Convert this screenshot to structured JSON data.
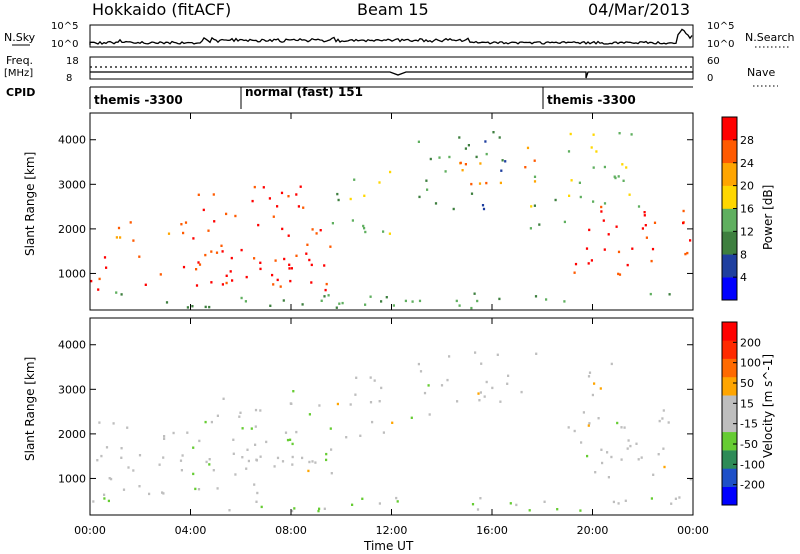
{
  "header": {
    "station": "Hokkaido (fitACF)",
    "beam": "Beam 15",
    "date": "04/Mar/2013"
  },
  "top_strip": {
    "nsky_label": "N.Sky",
    "nsky_ticks": [
      "10^5",
      "10^0"
    ],
    "nsearch_label": "N.Search",
    "nsearch_ticks": [
      "10^5",
      "10^0"
    ],
    "freq_label": "Freq.",
    "freq_unit": "[MHz]",
    "freq_ticks": [
      "18",
      "8"
    ],
    "nave_label": "Nave",
    "nave_ticks": [
      "60",
      "0"
    ],
    "cpid_label": "CPID",
    "cpid_segments": [
      {
        "label": "themis -3300",
        "start_hour": 0
      },
      {
        "label": "normal (fast) 151",
        "start_hour": 6
      },
      {
        "label": "themis -3300",
        "start_hour": 18.1
      }
    ]
  },
  "colors": {
    "power_scale": [
      "#0000ff",
      "#1f3f9f",
      "#3e7f3f",
      "#5faf5f",
      "#ffd700",
      "#ffa500",
      "#ff5a00",
      "#ff0000"
    ],
    "velocity_scale": [
      "#0000ff",
      "#1e50c8",
      "#2e8b57",
      "#66cc33",
      "#bebebe",
      "#bebebe",
      "#ffa500",
      "#ff6a00",
      "#ff2a00",
      "#ff0000"
    ]
  },
  "chart_data": [
    {
      "type": "heatmap",
      "title": "",
      "xlabel": "Time UT",
      "ylabel": "Slant Range [km]",
      "xlim": [
        0,
        24
      ],
      "ylim": [
        180,
        4600
      ],
      "x_ticks": [
        "00:00",
        "04:00",
        "08:00",
        "12:00",
        "16:00",
        "20:00",
        "00:00"
      ],
      "y_ticks": [
        "1000",
        "2000",
        "3000",
        "4000"
      ],
      "colorbar_label": "Power [dB]",
      "colorbar_ticks": [
        "4",
        "8",
        "12",
        "16",
        "20",
        "24",
        "28"
      ],
      "colorbar_range": [
        0,
        32
      ],
      "scatter_regions": [
        {
          "t": [
            0,
            9.4
          ],
          "r": [
            600,
            1500
          ],
          "level": 30
        },
        {
          "t": [
            0,
            4
          ],
          "r": [
            1700,
            2300
          ],
          "level": 24
        },
        {
          "t": [
            4,
            9.6
          ],
          "r": [
            1000,
            3000
          ],
          "level": 28
        },
        {
          "t": [
            9.6,
            12
          ],
          "r": [
            1900,
            3400
          ],
          "level": 14
        },
        {
          "t": [
            13,
            16.5
          ],
          "r": [
            2400,
            4200
          ],
          "level": 10
        },
        {
          "t": [
            14.5,
            17.8
          ],
          "r": [
            2900,
            3900
          ],
          "level": 24
        },
        {
          "t": [
            17.5,
            19
          ],
          "r": [
            2000,
            3200
          ],
          "level": 14
        },
        {
          "t": [
            19,
            24
          ],
          "r": [
            1000,
            2600
          ],
          "level": 28
        },
        {
          "t": [
            19,
            22
          ],
          "r": [
            2300,
            4300
          ],
          "level": 16
        },
        {
          "t": [
            0,
            24
          ],
          "r": [
            250,
            650
          ],
          "level": 12
        }
      ]
    },
    {
      "type": "heatmap",
      "title": "",
      "xlabel": "Time UT",
      "ylabel": "Slant Range [km]",
      "xlim": [
        0,
        24
      ],
      "ylim": [
        180,
        4600
      ],
      "x_ticks": [
        "00:00",
        "04:00",
        "08:00",
        "12:00",
        "16:00",
        "20:00",
        "00:00"
      ],
      "y_ticks": [
        "1000",
        "2000",
        "3000",
        "4000"
      ],
      "colorbar_label": "Velocity [m s^-1]",
      "colorbar_ticks": [
        "200",
        "100",
        "50",
        "15",
        "-15",
        "-50",
        "-100",
        "-200"
      ],
      "colorbar_range": [
        -250,
        250
      ],
      "scatter_regions": [
        {
          "t": [
            0,
            9.4
          ],
          "r": [
            600,
            1600
          ],
          "level": 0
        },
        {
          "t": [
            0,
            4
          ],
          "r": [
            1700,
            2300
          ],
          "level": 0
        },
        {
          "t": [
            4,
            9.6
          ],
          "r": [
            1000,
            3000
          ],
          "level": -30
        },
        {
          "t": [
            9.6,
            12
          ],
          "r": [
            1900,
            3400
          ],
          "level": 0
        },
        {
          "t": [
            12,
            13.5
          ],
          "r": [
            2300,
            2700
          ],
          "level": -40
        },
        {
          "t": [
            13,
            17.8
          ],
          "r": [
            2700,
            3900
          ],
          "level": 0
        },
        {
          "t": [
            19.5,
            21
          ],
          "r": [
            2200,
            3600
          ],
          "level": 40
        },
        {
          "t": [
            19,
            24
          ],
          "r": [
            1000,
            2600
          ],
          "level": 0
        },
        {
          "t": [
            0,
            24
          ],
          "r": [
            250,
            600
          ],
          "level": -40
        }
      ]
    }
  ]
}
